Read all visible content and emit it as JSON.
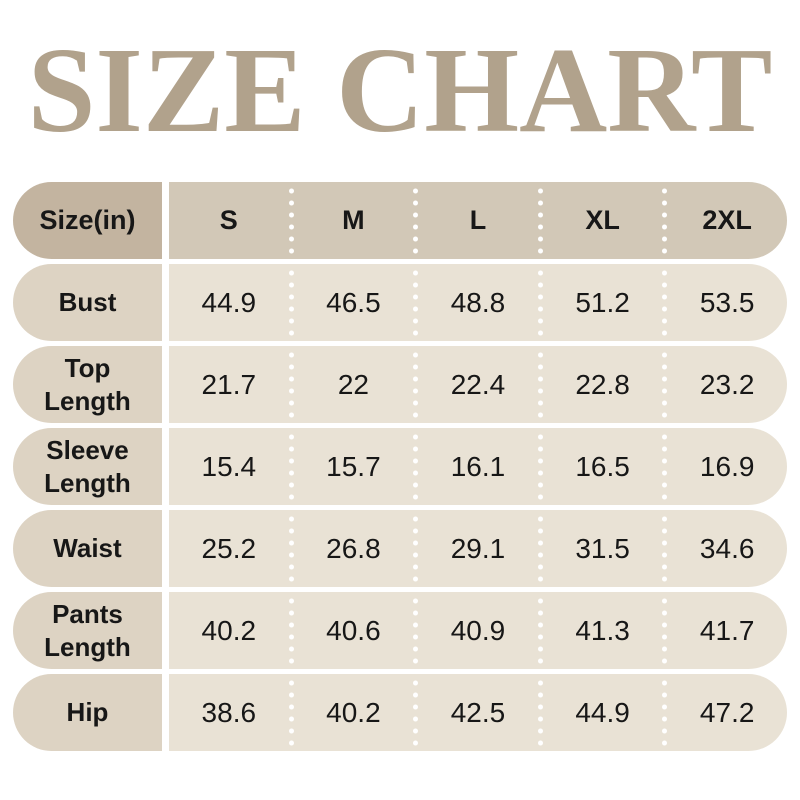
{
  "title": "SIZE CHART",
  "table": {
    "corner_label": "Size(in)",
    "sizes": [
      "S",
      "M",
      "L",
      "XL",
      "2XL"
    ],
    "rows": [
      {
        "label": "Bust",
        "values": [
          "44.9",
          "46.5",
          "48.8",
          "51.2",
          "53.5"
        ]
      },
      {
        "label": "Top Length",
        "values": [
          "21.7",
          "22",
          "22.4",
          "22.8",
          "23.2"
        ]
      },
      {
        "label": "Sleeve Length",
        "values": [
          "15.4",
          "15.7",
          "16.1",
          "16.5",
          "16.9"
        ]
      },
      {
        "label": "Waist",
        "values": [
          "25.2",
          "26.8",
          "29.1",
          "31.5",
          "34.6"
        ]
      },
      {
        "label": "Pants Length",
        "values": [
          "40.2",
          "40.6",
          "40.9",
          "41.3",
          "41.7"
        ]
      },
      {
        "label": "Hip",
        "values": [
          "38.6",
          "40.2",
          "42.5",
          "44.9",
          "47.2"
        ]
      }
    ]
  },
  "chart_data": {
    "type": "table",
    "title": "SIZE CHART",
    "unit": "in",
    "columns": [
      "Size(in)",
      "S",
      "M",
      "L",
      "XL",
      "2XL"
    ],
    "rows": [
      [
        "Bust",
        44.9,
        46.5,
        48.8,
        51.2,
        53.5
      ],
      [
        "Top Length",
        21.7,
        22,
        22.4,
        22.8,
        23.2
      ],
      [
        "Sleeve Length",
        15.4,
        15.7,
        16.1,
        16.5,
        16.9
      ],
      [
        "Waist",
        25.2,
        26.8,
        29.1,
        31.5,
        34.6
      ],
      [
        "Pants Length",
        40.2,
        40.6,
        40.9,
        41.3,
        41.7
      ],
      [
        "Hip",
        38.6,
        40.2,
        42.5,
        44.9,
        47.2
      ]
    ]
  },
  "colors": {
    "page_bg": "#ffffff",
    "title_text": "#b1a28c",
    "header_label_bg": "#c3b4a0",
    "header_band_bg": "#d2c8b7",
    "row_label_bg": "#ddd3c3",
    "row_band_bg": "#e9e2d5",
    "separator_dot": "#ffffff",
    "text_dark": "#171717"
  }
}
